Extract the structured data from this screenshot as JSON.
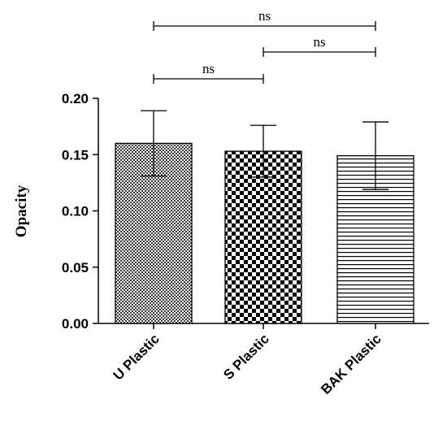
{
  "chart_data": {
    "type": "bar",
    "categories": [
      "U Plastic",
      "S Plastic",
      "BAK Plastic"
    ],
    "values": [
      0.16,
      0.153,
      0.149
    ],
    "errors": [
      0.029,
      0.023,
      0.03
    ],
    "ylabel": "Opacity",
    "xlabel": "",
    "ylim": [
      0,
      0.2
    ],
    "yticks": [
      "0.00",
      "0.05",
      "0.10",
      "0.15",
      "0.20"
    ],
    "patterns": [
      "fine-checker",
      "coarse-checker",
      "horizontal-lines"
    ],
    "comparisons": [
      {
        "from": 0,
        "to": 2,
        "label": "ns"
      },
      {
        "from": 1,
        "to": 2,
        "label": "ns"
      },
      {
        "from": 0,
        "to": 1,
        "label": "ns"
      }
    ],
    "grid": false,
    "legend": "none"
  }
}
